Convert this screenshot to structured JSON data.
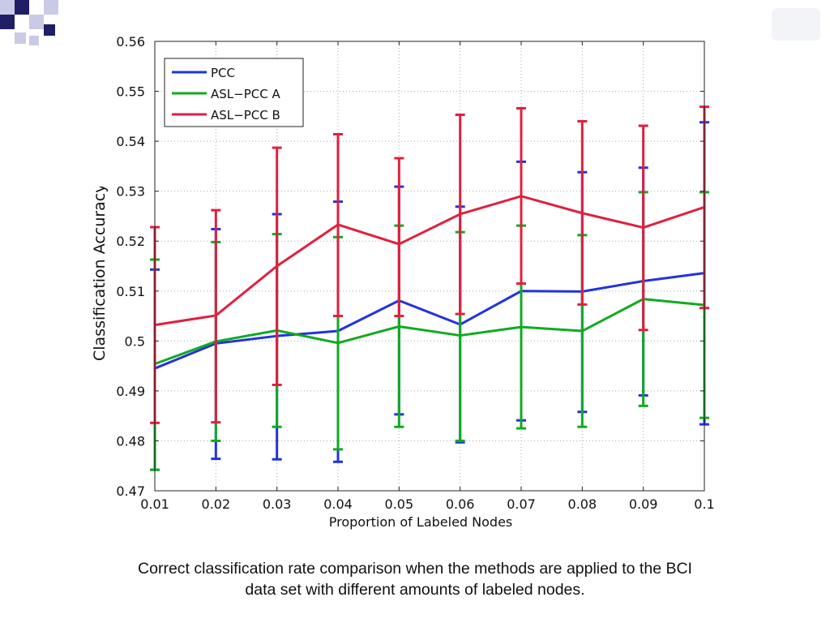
{
  "caption": {
    "line1": "Correct classification rate comparison when the methods are applied to the BCI",
    "line2": "data set with different amounts of labeled nodes."
  },
  "colors": {
    "pcc": "#2233dd",
    "asl_pcc_a": "#11aa22",
    "asl_pcc_b": "#e0203f",
    "deco_dark": "#1f1f66",
    "deco_light": "#c9cbe6"
  },
  "chart_data": {
    "type": "line",
    "title": "",
    "xlabel": "Proportion of Labeled Nodes",
    "ylabel": "Classification Accuracy",
    "x": [
      0.01,
      0.02,
      0.03,
      0.04,
      0.05,
      0.06,
      0.07,
      0.08,
      0.09,
      0.1
    ],
    "x_tick_labels": [
      "0.01",
      "0.02",
      "0.03",
      "0.04",
      "0.05",
      "0.06",
      "0.07",
      "0.08",
      "0.09",
      "0.1"
    ],
    "y_tick_labels": [
      "0.47",
      "0.48",
      "0.49",
      "0.5",
      "0.51",
      "0.52",
      "0.53",
      "0.54",
      "0.55",
      "0.56"
    ],
    "xlim": [
      0.01,
      0.1
    ],
    "ylim": [
      0.47,
      0.56
    ],
    "grid": true,
    "legend_position": "top-left",
    "error_bars": true,
    "series": [
      {
        "name": "PCC",
        "color_key": "pcc",
        "values": [
          0.4945,
          0.4995,
          0.501,
          0.502,
          0.5081,
          0.5033,
          0.51,
          0.5099,
          0.512,
          0.5136
        ],
        "err_low": [
          0.4742,
          0.4764,
          0.4763,
          0.4758,
          0.4853,
          0.4797,
          0.4841,
          0.4858,
          0.4891,
          0.4833
        ],
        "err_high": [
          0.5143,
          0.5224,
          0.5254,
          0.5279,
          0.5309,
          0.5269,
          0.5359,
          0.5338,
          0.5347,
          0.5438
        ]
      },
      {
        "name": "ASL−PCC A",
        "color_key": "asl_pcc_a",
        "values": [
          0.4954,
          0.4999,
          0.5021,
          0.4996,
          0.5029,
          0.5011,
          0.5028,
          0.502,
          0.5084,
          0.5072
        ],
        "err_low": [
          0.4742,
          0.48,
          0.4828,
          0.4783,
          0.4828,
          0.48,
          0.4825,
          0.4828,
          0.487,
          0.4846
        ],
        "err_high": [
          0.5163,
          0.5198,
          0.5214,
          0.5208,
          0.5231,
          0.5218,
          0.5231,
          0.5212,
          0.5298,
          0.5298
        ]
      },
      {
        "name": "ASL−PCC B",
        "color_key": "asl_pcc_b",
        "values": [
          0.5032,
          0.5051,
          0.515,
          0.5233,
          0.5194,
          0.5254,
          0.529,
          0.5256,
          0.5227,
          0.5268
        ],
        "err_low": [
          0.4836,
          0.4837,
          0.4912,
          0.505,
          0.505,
          0.5054,
          0.5115,
          0.5073,
          0.5022,
          0.5066
        ],
        "err_high": [
          0.5228,
          0.5262,
          0.5387,
          0.5414,
          0.5366,
          0.5453,
          0.5466,
          0.544,
          0.5431,
          0.5469
        ]
      }
    ]
  }
}
